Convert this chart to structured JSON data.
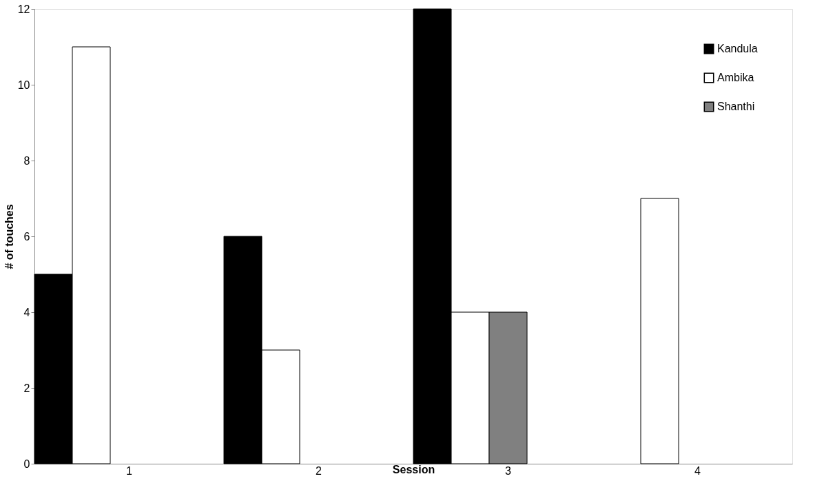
{
  "chart_data": {
    "type": "bar",
    "xlabel": "Session",
    "ylabel": "# of touches",
    "categories": [
      "1",
      "2",
      "3",
      "4"
    ],
    "series": [
      {
        "name": "Kandula",
        "color": "#000000",
        "values": [
          5,
          6,
          12,
          null
        ]
      },
      {
        "name": "Ambika",
        "color": "#ffffff",
        "values": [
          11,
          3,
          4,
          7
        ]
      },
      {
        "name": "Shanthi",
        "color": "#808080",
        "values": [
          null,
          null,
          4,
          null
        ]
      }
    ],
    "ylim": [
      0,
      12
    ],
    "yticks": [
      0,
      2,
      4,
      6,
      8,
      10,
      12
    ],
    "grid": false,
    "legend": "top right"
  }
}
